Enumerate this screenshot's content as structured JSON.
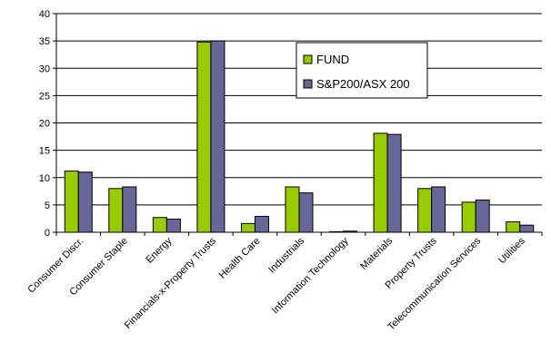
{
  "chart_data": {
    "type": "bar",
    "title": "",
    "xlabel": "",
    "ylabel": "",
    "ylim": [
      0,
      40
    ],
    "yticks": [
      0,
      5,
      10,
      15,
      20,
      25,
      30,
      35,
      40
    ],
    "grid": true,
    "legend_position": "upper-center",
    "categories": [
      "Consumer Discr.",
      "Consumer Staple",
      "Energy",
      "Financials-x-Property Trusts",
      "Health Care",
      "Industrials",
      "Information Technology",
      "Materials",
      "Property Trusts",
      "Telecommunication Services",
      "Utilities"
    ],
    "series": [
      {
        "name": "FUND",
        "color": "#99cc00",
        "values": [
          11.2,
          8.0,
          2.7,
          34.8,
          1.6,
          8.3,
          0.0,
          18.1,
          8.0,
          5.5,
          1.9
        ]
      },
      {
        "name": "S&P200/ASX 200",
        "color": "#666699",
        "values": [
          11.0,
          8.3,
          2.4,
          35.0,
          2.9,
          7.2,
          0.2,
          17.9,
          8.3,
          5.9,
          1.3
        ]
      }
    ]
  }
}
